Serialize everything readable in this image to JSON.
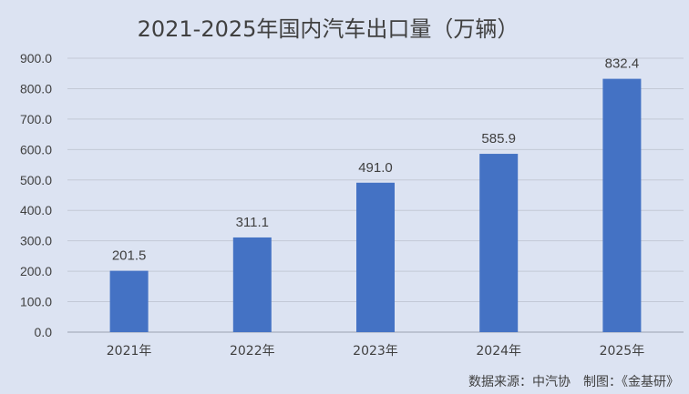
{
  "chart_data": {
    "type": "bar",
    "title": "2021-2025年国内汽车出口量（万辆）",
    "categories": [
      "2021年",
      "2022年",
      "2023年",
      "2024年",
      "2025年"
    ],
    "values": [
      201.5,
      311.1,
      491.0,
      585.9,
      832.4
    ],
    "data_labels": [
      "201.5",
      "311.1",
      "491.0",
      "585.9",
      "832.4"
    ],
    "yticks": [
      "0.0",
      "100.0",
      "200.0",
      "300.0",
      "400.0",
      "500.0",
      "600.0",
      "700.0",
      "800.0",
      "900.0"
    ],
    "ylim": [
      0,
      900
    ],
    "xlabel": "",
    "ylabel": "",
    "grid": true,
    "bar_color": "#4472c4",
    "background_color": "#dce3f2"
  },
  "footer": {
    "source": "数据来源：中汽协　制图：《金基研》"
  }
}
